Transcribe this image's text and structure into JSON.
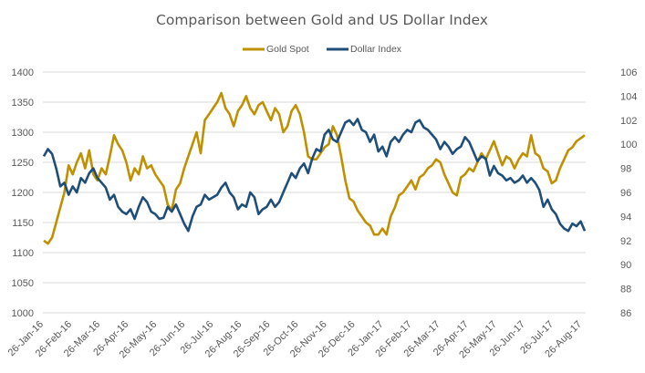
{
  "chart_data": {
    "type": "line",
    "title": "Comparison between Gold and US Dollar Index",
    "xlabel": "",
    "ylabel_left": "",
    "ylabel_right": "",
    "legend_position": "top",
    "grid": true,
    "x_tick_labels": [
      "26-Jan-16",
      "26-Feb-16",
      "26-Mar-16",
      "26-Apr-16",
      "26-May-16",
      "26-Jun-16",
      "26-Jul-16",
      "26-Aug-16",
      "26-Sep-16",
      "26-Oct-16",
      "26-Nov-16",
      "26-Dec-16",
      "26-Jan-17",
      "26-Feb-17",
      "26-Mar-17",
      "26-Apr-17",
      "26-May-17",
      "26-Jun-17",
      "26-Jul-17",
      "26-Aug-17"
    ],
    "y_left": {
      "ticks": [
        1000,
        1050,
        1100,
        1150,
        1200,
        1250,
        1300,
        1350,
        1400
      ],
      "range": [
        1000,
        1400
      ]
    },
    "y_right": {
      "ticks": [
        86,
        88,
        90,
        92,
        94,
        96,
        98,
        100,
        102,
        104,
        106
      ],
      "range": [
        86,
        106
      ]
    },
    "series": [
      {
        "name": "Gold Spot",
        "axis": "left",
        "color": "#BF9000",
        "values": [
          1120,
          1115,
          1125,
          1150,
          1175,
          1200,
          1245,
          1230,
          1250,
          1265,
          1240,
          1270,
          1230,
          1220,
          1240,
          1230,
          1260,
          1295,
          1280,
          1270,
          1250,
          1220,
          1240,
          1230,
          1260,
          1240,
          1245,
          1230,
          1220,
          1210,
          1180,
          1170,
          1205,
          1215,
          1240,
          1260,
          1280,
          1300,
          1265,
          1320,
          1330,
          1340,
          1350,
          1365,
          1340,
          1330,
          1310,
          1335,
          1345,
          1360,
          1340,
          1330,
          1345,
          1350,
          1335,
          1320,
          1340,
          1330,
          1300,
          1310,
          1335,
          1345,
          1330,
          1300,
          1260,
          1255,
          1255,
          1265,
          1275,
          1280,
          1310,
          1295,
          1260,
          1220,
          1190,
          1185,
          1170,
          1160,
          1150,
          1145,
          1130,
          1130,
          1140,
          1130,
          1160,
          1175,
          1195,
          1200,
          1210,
          1220,
          1205,
          1225,
          1230,
          1240,
          1245,
          1255,
          1250,
          1230,
          1215,
          1200,
          1195,
          1225,
          1230,
          1240,
          1235,
          1250,
          1265,
          1255,
          1270,
          1285,
          1265,
          1245,
          1260,
          1255,
          1240,
          1255,
          1265,
          1260,
          1295,
          1265,
          1260,
          1240,
          1235,
          1215,
          1220,
          1240,
          1255,
          1270,
          1275,
          1285,
          1290,
          1295
        ]
      },
      {
        "name": "Dollar Index",
        "axis": "right",
        "color": "#1F4E79",
        "values": [
          99.0,
          99.6,
          99.2,
          98.0,
          96.5,
          96.8,
          95.8,
          96.5,
          96.0,
          97.2,
          96.8,
          97.6,
          98.0,
          97.2,
          96.8,
          96.4,
          95.4,
          95.8,
          94.8,
          94.4,
          94.2,
          94.6,
          93.8,
          94.8,
          95.6,
          95.2,
          94.4,
          94.2,
          93.8,
          93.9,
          94.8,
          94.4,
          95.0,
          94.2,
          93.4,
          92.8,
          94.0,
          94.8,
          95.0,
          95.8,
          95.4,
          95.6,
          95.8,
          96.4,
          96.8,
          96.0,
          95.6,
          94.6,
          95.0,
          94.8,
          96.0,
          95.6,
          94.2,
          94.6,
          94.8,
          95.4,
          94.8,
          95.2,
          96.0,
          96.8,
          97.6,
          97.2,
          98.0,
          98.4,
          97.6,
          98.8,
          99.6,
          99.4,
          100.8,
          101.2,
          100.4,
          100.2,
          101.0,
          101.8,
          102.0,
          101.6,
          102.1,
          101.2,
          101.0,
          100.2,
          100.8,
          99.4,
          99.8,
          99.0,
          100.2,
          100.6,
          100.2,
          100.8,
          101.2,
          101.0,
          101.8,
          102.0,
          101.4,
          101.2,
          100.8,
          100.4,
          99.6,
          100.2,
          99.8,
          99.2,
          99.6,
          99.8,
          100.6,
          100.2,
          99.4,
          98.6,
          99.0,
          98.8,
          97.4,
          98.2,
          97.6,
          97.4,
          97.0,
          97.2,
          96.8,
          97.0,
          97.4,
          96.8,
          97.2,
          96.8,
          96.2,
          94.8,
          95.4,
          94.6,
          94.2,
          93.4,
          93.0,
          92.8,
          93.4,
          93.2,
          93.6,
          92.8
        ]
      }
    ]
  }
}
